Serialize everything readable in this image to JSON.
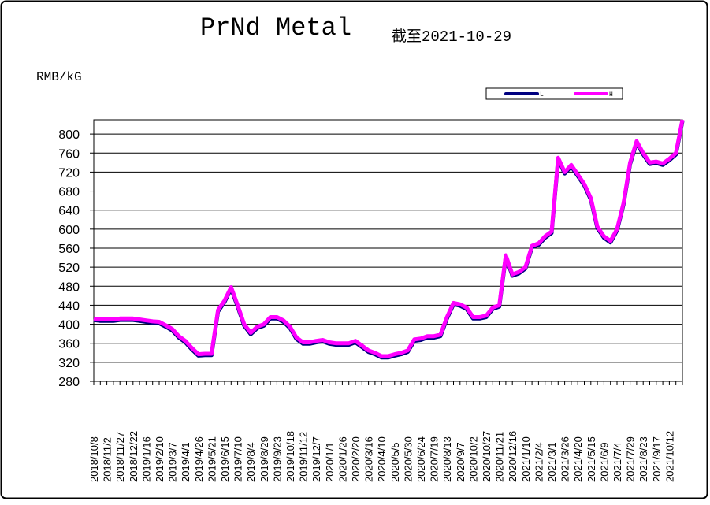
{
  "chart_data": {
    "type": "line",
    "title": "PrNd Metal",
    "subtitle": "截至2021-10-29",
    "y_label": "RMB/kG",
    "categories": [
      "2018/10/8",
      null,
      "2018/11/2",
      null,
      "2018/11/27",
      null,
      "2018/12/22",
      null,
      "2019/1/16",
      null,
      "2019/2/10",
      null,
      "2019/3/7",
      null,
      "2019/4/1",
      null,
      "2019/4/26",
      null,
      "2019/5/21",
      null,
      "2019/6/15",
      null,
      "2019/7/10",
      null,
      "2019/8/4",
      null,
      "2019/8/29",
      null,
      "2019/9/23",
      null,
      "2019/10/18",
      null,
      "2019/11/12",
      null,
      "2019/12/7",
      null,
      "2020/1/1",
      null,
      "2020/1/26",
      null,
      "2020/2/20",
      null,
      "2020/3/16",
      null,
      "2020/4/10",
      null,
      "2020/5/5",
      null,
      "2020/5/30",
      null,
      "2020/6/24",
      null,
      "2020/7/19",
      null,
      "2020/8/13",
      null,
      "2020/9/7",
      null,
      "2020/10/2",
      null,
      "2020/10/27",
      null,
      "2020/11/21",
      null,
      "2020/12/16",
      null,
      "2021/1/10",
      null,
      "2021/2/4",
      null,
      "2021/3/1",
      null,
      "2021/3/26",
      null,
      "2021/4/20",
      null,
      "2021/5/15",
      null,
      "2021/6/9",
      null,
      "2021/7/4",
      null,
      "2021/7/29",
      null,
      "2021/8/23",
      null,
      "2021/9/17",
      null,
      "2021/10/12",
      null,
      null
    ],
    "series": [
      {
        "name": "L",
        "color": "#000080",
        "values": [
          409,
          407,
          407,
          407,
          409,
          409,
          409,
          407,
          405,
          403,
          402,
          395,
          387,
          372,
          362,
          347,
          334,
          335,
          335,
          427,
          447,
          475,
          437,
          397,
          379,
          392,
          397,
          412,
          412,
          405,
          392,
          369,
          359,
          359,
          362,
          364,
          359,
          357,
          357,
          357,
          362,
          352,
          342,
          337,
          330,
          330,
          334,
          337,
          342,
          365,
          367,
          372,
          372,
          375,
          412,
          442,
          439,
          432,
          412,
          412,
          415,
          432,
          437,
          542,
          502,
          507,
          517,
          562,
          567,
          582,
          592,
          747,
          717,
          732,
          712,
          692,
          662,
          602,
          582,
          572,
          597,
          652,
          737,
          782,
          757,
          737,
          739,
          735,
          745,
          757,
          827
        ]
      },
      {
        "name": "H",
        "color": "#ff00ff",
        "values": [
          412,
          410,
          410,
          410,
          412,
          412,
          412,
          410,
          408,
          406,
          405,
          398,
          390,
          375,
          365,
          350,
          337,
          338,
          338,
          430,
          450,
          478,
          440,
          400,
          382,
          395,
          400,
          415,
          415,
          408,
          395,
          372,
          362,
          362,
          365,
          367,
          362,
          360,
          360,
          360,
          365,
          355,
          345,
          340,
          333,
          333,
          337,
          340,
          345,
          368,
          370,
          375,
          375,
          378,
          415,
          445,
          442,
          435,
          415,
          415,
          418,
          435,
          440,
          545,
          505,
          510,
          520,
          565,
          570,
          585,
          595,
          750,
          720,
          735,
          715,
          695,
          665,
          605,
          585,
          575,
          600,
          655,
          740,
          785,
          760,
          740,
          742,
          738,
          748,
          760,
          830
        ]
      }
    ],
    "ylim": [
      280,
      830
    ],
    "yticks": [
      280,
      320,
      360,
      400,
      440,
      480,
      520,
      560,
      600,
      640,
      680,
      720,
      760,
      800
    ],
    "grid": true,
    "legend": "top-right"
  }
}
